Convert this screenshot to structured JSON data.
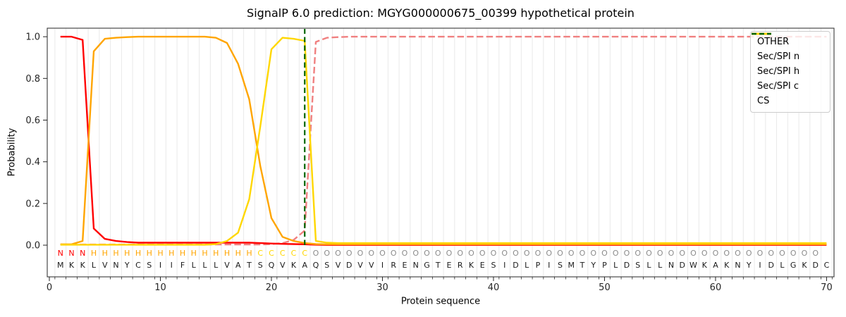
{
  "title": "SignalP 6.0 prediction: MGYG000000675_00399 hypothetical protein",
  "legend": {
    "items": [
      {
        "label": "OTHER",
        "color": "#f08080",
        "dash": "dashed"
      },
      {
        "label": "Sec/SPI n",
        "color": "#ff0000",
        "dash": "solid"
      },
      {
        "label": "Sec/SPI h",
        "color": "#ffa500",
        "dash": "solid"
      },
      {
        "label": "Sec/SPI c",
        "color": "#ffd700",
        "dash": "solid"
      },
      {
        "label": "CS",
        "color": "#006400",
        "dash": "dashed"
      }
    ]
  },
  "chart_data": {
    "type": "line",
    "title": "SignalP 6.0 prediction: MGYG000000675_00399 hypothetical protein",
    "xlabel": "Protein sequence",
    "ylabel": "Probability",
    "xlim": [
      0,
      70.6
    ],
    "ylim": [
      -0.15,
      1.04
    ],
    "x_ticks": [
      0,
      10,
      20,
      30,
      40,
      50,
      60,
      70
    ],
    "y_ticks": [
      0.0,
      0.2,
      0.4,
      0.6,
      0.8,
      1.0
    ],
    "grid": "vertical light-gray gridlines at every residue boundary (0.5 steps)",
    "legend_position": "upper right",
    "x": [
      1,
      2,
      3,
      4,
      5,
      6,
      7,
      8,
      9,
      10,
      11,
      12,
      13,
      14,
      15,
      16,
      17,
      18,
      19,
      20,
      21,
      22,
      23,
      24,
      25,
      26,
      27,
      28,
      29,
      30,
      31,
      32,
      33,
      34,
      35,
      36,
      37,
      38,
      39,
      40,
      41,
      42,
      43,
      44,
      45,
      46,
      47,
      48,
      49,
      50,
      51,
      52,
      53,
      54,
      55,
      56,
      57,
      58,
      59,
      60,
      61,
      62,
      63,
      64,
      65,
      66,
      67,
      68,
      69,
      70
    ],
    "series": [
      {
        "name": "OTHER",
        "color": "#f08080",
        "dash": "dashed",
        "values": [
          0.003,
          0.003,
          0.003,
          0.003,
          0.003,
          0.003,
          0.003,
          0.003,
          0.003,
          0.003,
          0.003,
          0.003,
          0.003,
          0.003,
          0.003,
          0.003,
          0.003,
          0.003,
          0.003,
          0.005,
          0.01,
          0.025,
          0.07,
          0.975,
          0.995,
          0.998,
          1.0,
          1.0,
          1.0,
          1.0,
          1.0,
          1.0,
          1.0,
          1.0,
          1.0,
          1.0,
          1.0,
          1.0,
          1.0,
          1.0,
          1.0,
          1.0,
          1.0,
          1.0,
          1.0,
          1.0,
          1.0,
          1.0,
          1.0,
          1.0,
          1.0,
          1.0,
          1.0,
          1.0,
          1.0,
          1.0,
          1.0,
          1.0,
          1.0,
          1.0,
          1.0,
          1.0,
          1.0,
          1.0,
          1.0,
          1.0,
          1.0,
          1.0,
          1.0,
          1.0
        ]
      },
      {
        "name": "Sec/SPI n",
        "color": "#ff0000",
        "dash": "solid",
        "values": [
          1.0,
          1.0,
          0.985,
          0.08,
          0.03,
          0.02,
          0.015,
          0.012,
          0.012,
          0.012,
          0.012,
          0.012,
          0.012,
          0.012,
          0.012,
          0.012,
          0.012,
          0.012,
          0.01,
          0.008,
          0.006,
          0.005,
          0.004,
          0.002,
          0.001,
          0.001,
          0.001,
          0.001,
          0.001,
          0.001,
          0.001,
          0.001,
          0.001,
          0.001,
          0.001,
          0.001,
          0.001,
          0.001,
          0.001,
          0.001,
          0.001,
          0.001,
          0.001,
          0.001,
          0.001,
          0.001,
          0.001,
          0.001,
          0.001,
          0.001,
          0.001,
          0.001,
          0.001,
          0.001,
          0.001,
          0.001,
          0.001,
          0.001,
          0.001,
          0.001,
          0.001,
          0.001,
          0.001,
          0.001,
          0.001,
          0.001,
          0.001,
          0.001,
          0.001,
          0.001
        ]
      },
      {
        "name": "Sec/SPI h",
        "color": "#ffa500",
        "dash": "solid",
        "values": [
          0.004,
          0.004,
          0.02,
          0.93,
          0.99,
          0.995,
          0.998,
          1.0,
          1.0,
          1.0,
          1.0,
          1.0,
          1.0,
          1.0,
          0.995,
          0.97,
          0.87,
          0.7,
          0.38,
          0.13,
          0.04,
          0.02,
          0.01,
          0.005,
          0.004,
          0.004,
          0.004,
          0.004,
          0.004,
          0.004,
          0.004,
          0.004,
          0.004,
          0.004,
          0.004,
          0.004,
          0.004,
          0.004,
          0.004,
          0.004,
          0.004,
          0.004,
          0.004,
          0.004,
          0.004,
          0.004,
          0.004,
          0.004,
          0.004,
          0.004,
          0.004,
          0.004,
          0.004,
          0.004,
          0.004,
          0.004,
          0.004,
          0.004,
          0.004,
          0.004,
          0.004,
          0.004,
          0.004,
          0.004,
          0.004,
          0.004,
          0.004,
          0.004,
          0.004,
          0.004
        ]
      },
      {
        "name": "Sec/SPI c",
        "color": "#ffd700",
        "dash": "solid",
        "values": [
          0.002,
          0.002,
          0.002,
          0.002,
          0.002,
          0.002,
          0.002,
          0.002,
          0.002,
          0.002,
          0.002,
          0.002,
          0.002,
          0.002,
          0.005,
          0.02,
          0.06,
          0.22,
          0.57,
          0.94,
          0.995,
          0.99,
          0.98,
          0.02,
          0.012,
          0.01,
          0.01,
          0.01,
          0.01,
          0.01,
          0.01,
          0.01,
          0.01,
          0.01,
          0.01,
          0.01,
          0.01,
          0.01,
          0.01,
          0.01,
          0.01,
          0.01,
          0.01,
          0.01,
          0.01,
          0.01,
          0.01,
          0.01,
          0.01,
          0.01,
          0.01,
          0.01,
          0.01,
          0.01,
          0.01,
          0.01,
          0.01,
          0.01,
          0.01,
          0.01,
          0.01,
          0.01,
          0.01,
          0.01,
          0.01,
          0.01,
          0.01,
          0.01,
          0.01,
          0.01
        ]
      }
    ],
    "cs_line": {
      "name": "CS",
      "position": 23,
      "color": "#006400",
      "dash": "dashed"
    },
    "sequence": "MKKLVNYCSIIFLLLVATSQVKAQSVDVVIRENGTERKESIDLPISMTYPLDSLLNDWKAKNYIDLGKDC",
    "region_labels": "NNNHHHHHHHHHHHHHHHCCCCCOOOOOOOOOOOOOOOOOOOOOOOOOOOOOOOOOOOOOOOOOOOOOO",
    "label_colors": {
      "N": "#ff0000",
      "H": "#ffa500",
      "C": "#ffd700",
      "O": "#8c8c8c"
    },
    "sequence_color": "#1a1a1a"
  }
}
